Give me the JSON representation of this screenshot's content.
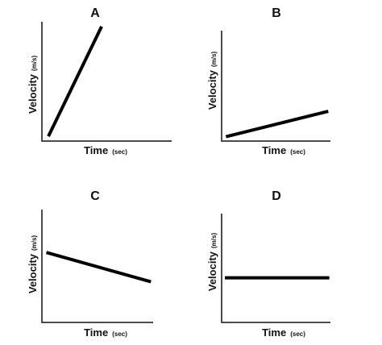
{
  "chart_data": [
    {
      "type": "line",
      "title": "A",
      "xlabel": "Time",
      "xunit": "(sec)",
      "ylabel": "Velocity",
      "yunit": "(m/s)",
      "ylim": [
        0,
        1
      ],
      "xlim": [
        0,
        1
      ],
      "grid": false,
      "series": [
        {
          "x": [
            0.05,
            0.46
          ],
          "y": [
            0.04,
            0.96
          ]
        }
      ]
    },
    {
      "type": "line",
      "title": "B",
      "xlabel": "Time",
      "xunit": "(sec)",
      "ylabel": "Velocity",
      "yunit": "(m/s)",
      "ylim": [
        0,
        1
      ],
      "xlim": [
        0,
        1
      ],
      "grid": false,
      "series": [
        {
          "x": [
            0.04,
            0.98
          ],
          "y": [
            0.04,
            0.27
          ]
        }
      ]
    },
    {
      "type": "line",
      "title": "C",
      "xlabel": "Time",
      "xunit": "(sec)",
      "ylabel": "Velocity",
      "yunit": "(m/s)",
      "ylim": [
        0,
        1
      ],
      "xlim": [
        0,
        1
      ],
      "grid": false,
      "series": [
        {
          "x": [
            0.04,
            0.98
          ],
          "y": [
            0.62,
            0.36
          ]
        }
      ]
    },
    {
      "type": "line",
      "title": "D",
      "xlabel": "Time",
      "xunit": "(sec)",
      "ylabel": "Velocity",
      "yunit": "(m/s)",
      "ylim": [
        0,
        1
      ],
      "xlim": [
        0,
        1
      ],
      "grid": false,
      "series": [
        {
          "x": [
            0.03,
            0.99
          ],
          "y": [
            0.41,
            0.41
          ]
        }
      ]
    }
  ]
}
